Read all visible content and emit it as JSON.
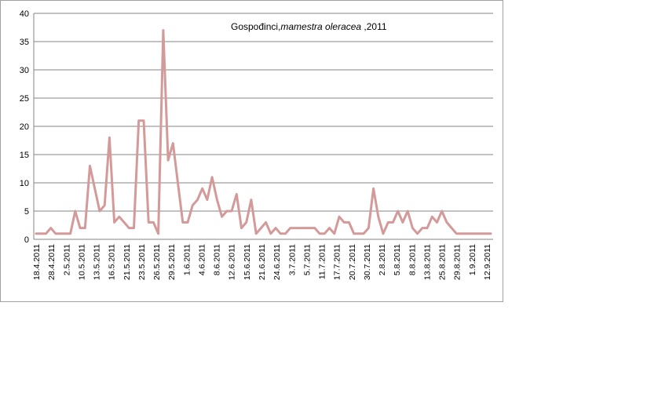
{
  "chart_data": {
    "type": "line",
    "title_plain": "Gospođinci,",
    "title_italic": "mamestra oleracea",
    "title_suffix": " ,2011",
    "xlabel": "",
    "ylabel": "",
    "ylim": [
      0,
      40
    ],
    "yticks": [
      "0",
      "5",
      "10",
      "15",
      "20",
      "25",
      "30",
      "35",
      "40"
    ],
    "grid": true,
    "legend": "none",
    "line_color": "#d49a9a",
    "x_tick_labels": [
      "18.4.2011",
      "28.4.2011",
      "2.5.2011",
      "10.5.2011",
      "13.5.2011",
      "16.5.2011",
      "21.5.2011",
      "23.5.2011",
      "26.5.2011",
      "29.5.2011",
      "1.6.2011",
      "4.6.2011",
      "8.6.2011",
      "12.6.2011",
      "15.6.2011",
      "21.6.2011",
      "24.6.2011",
      "3.7.2011",
      "5.7.2011",
      "11.7.2011",
      "17.7.2011",
      "20.7.2011",
      "30.7.2011",
      "2.8.2011",
      "5.8.2011",
      "8.8.2011",
      "13.8.2011",
      "25.8.2011",
      "29.8.2011",
      "1.9.2011",
      "12.9.2011"
    ],
    "series": [
      {
        "values": [
          1,
          1,
          1,
          2,
          1,
          1,
          1,
          1,
          5,
          2,
          2,
          13,
          9,
          5,
          6,
          18,
          3,
          4,
          3,
          2,
          2,
          21,
          21,
          3,
          3,
          1,
          37,
          14,
          17,
          10,
          3,
          3,
          6,
          7,
          9,
          7,
          11,
          7,
          4,
          5,
          5,
          8,
          2,
          3,
          7,
          1,
          2,
          3,
          1,
          2,
          1,
          1,
          2,
          2,
          2,
          2,
          2,
          2,
          1,
          1,
          2,
          1,
          4,
          3,
          3,
          1,
          1,
          1,
          2,
          9,
          4,
          1,
          3,
          3,
          5,
          3,
          5,
          2,
          1,
          2,
          2,
          4,
          3,
          5,
          3,
          2,
          1,
          1,
          1,
          1,
          1,
          1,
          1,
          1
        ]
      }
    ]
  }
}
